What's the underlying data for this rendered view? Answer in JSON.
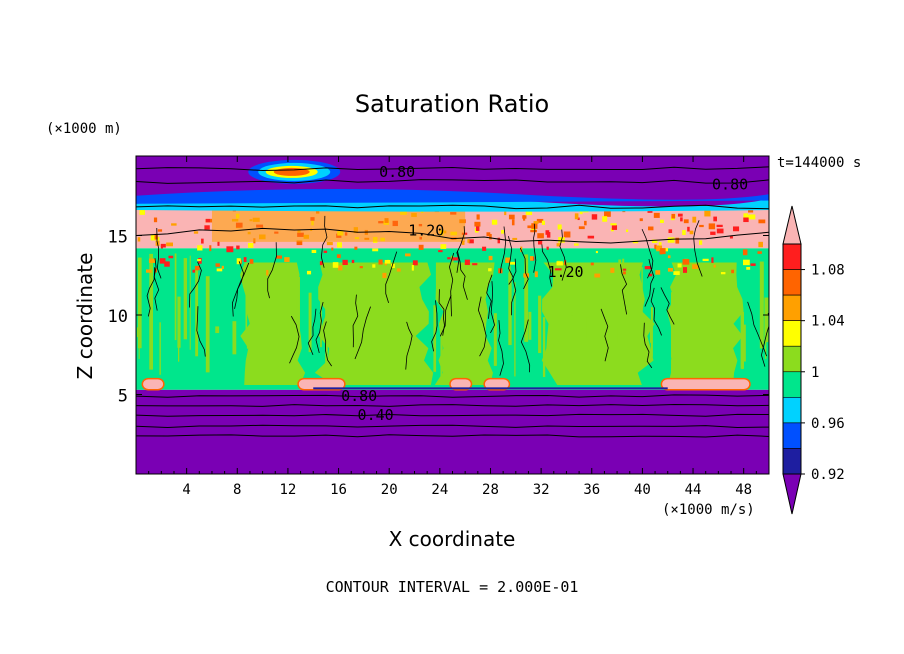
{
  "chart_data": {
    "type": "heatmap",
    "title": "Saturation Ratio",
    "xlabel": "X coordinate",
    "ylabel": "Z coordinate",
    "x_unit_label": "(×1000 m/s)",
    "y_unit_label": "(×1000 m)",
    "time_label": "t=144000 s",
    "footer": "CONTOUR INTERVAL = 2.000E-01",
    "xlim": [
      0,
      50
    ],
    "ylim": [
      0,
      20
    ],
    "x_ticks": [
      "4",
      "8",
      "12",
      "16",
      "20",
      "24",
      "28",
      "32",
      "36",
      "40",
      "44",
      "48"
    ],
    "y_ticks": [
      "5",
      "10",
      "15"
    ],
    "colorbar": {
      "levels": [
        0.92,
        0.94,
        0.96,
        0.98,
        1.0,
        1.02,
        1.04,
        1.06,
        1.08,
        1.1
      ],
      "tick_labels": [
        "1.08",
        "1.04",
        "1",
        "0.96",
        "0.92"
      ],
      "colors": [
        "#7a00b4",
        "#1e1ea0",
        "#0050ff",
        "#00d2ff",
        "#00e68c",
        "#8cdc1e",
        "#ffff00",
        "#ffa000",
        "#ff6400",
        "#ff1e1e",
        "#fab4b4"
      ]
    },
    "contour_labels": [
      "0.80",
      "0.80",
      "1.20",
      "1.20",
      "0.80",
      "0.40"
    ],
    "field_bands": [
      {
        "z_from": 0,
        "z_to": 5.3,
        "value": 0.4,
        "color": "#7a00b4"
      },
      {
        "z_from": 5.3,
        "z_to": 14.2,
        "value": 0.99,
        "color": "#00e68c"
      },
      {
        "z_from": 14.2,
        "z_to": 16.8,
        "value": 1.2,
        "color": "#fab4b4"
      },
      {
        "z_from": 16.8,
        "z_to": 20,
        "value": 0.8,
        "color": "#7a00b4"
      }
    ]
  }
}
